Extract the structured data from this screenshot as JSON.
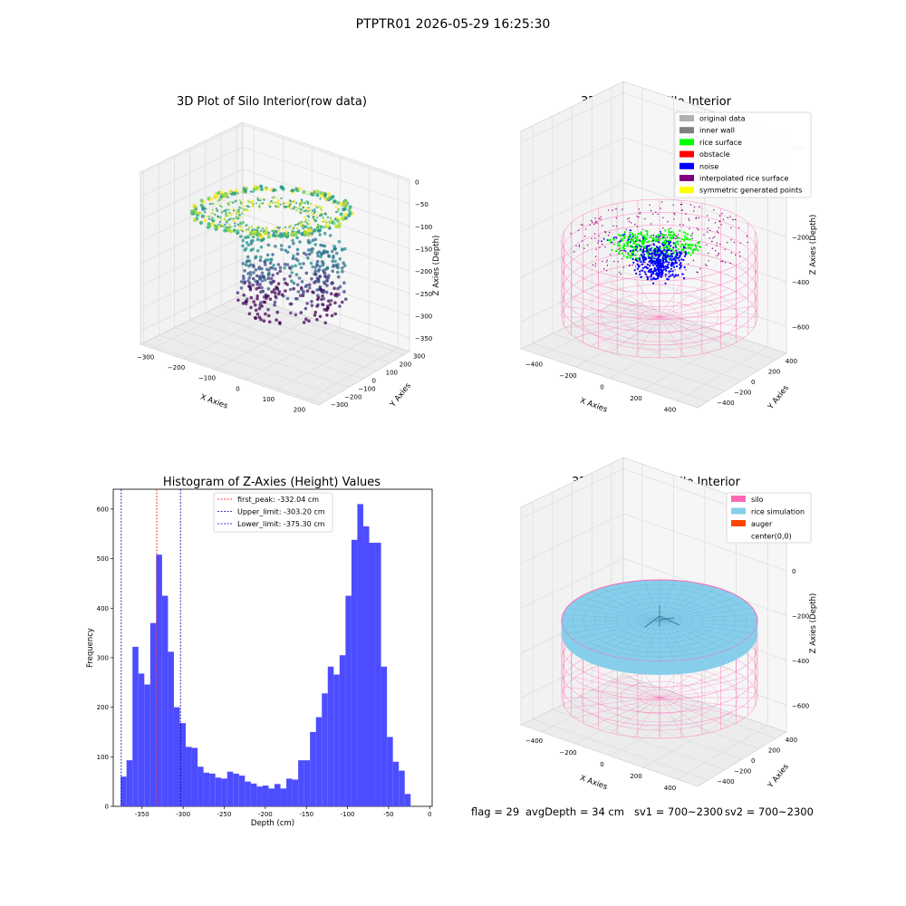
{
  "figure": {
    "suptitle": "PTPTR01 2026-05-29 16:25:30",
    "footer": {
      "flag": "flag = 29",
      "avg_depth": "avgDepth = 34 cm",
      "sv1": "sv1 = 700~2300",
      "sv2": "sv2 = 700~2300"
    }
  },
  "chart_data": [
    {
      "id": "raw",
      "type": "scatter3d",
      "title": "3D Plot of Silo Interior(row data)",
      "xlabel": "X Axies",
      "ylabel": "Y Axies",
      "zlabel": "Z Axies (Depth)",
      "x_ticks": [
        "−300",
        "−200",
        "−100",
        "0",
        "100",
        "200"
      ],
      "y_ticks": [
        "−300",
        "−200",
        "−100",
        "0",
        "100",
        "200",
        "300"
      ],
      "z_ticks": [
        "0",
        "−50",
        "−100",
        "−150",
        "−200",
        "−250",
        "−300",
        "−350"
      ],
      "xlim": [
        -340,
        240
      ],
      "ylim": [
        -320,
        340
      ],
      "zlim": [
        -380,
        5
      ],
      "colormap": "viridis",
      "colors": {
        "low": "#440154",
        "mid": "#21918c",
        "high": "#fde725"
      }
    },
    {
      "id": "classify",
      "type": "scatter3d",
      "title": "3D classify of Silo Interior",
      "xlabel": "X Axies",
      "ylabel": "Y Axies",
      "zlabel": "Z Axies (Depth)",
      "x_ticks": [
        "−400",
        "−200",
        "0",
        "200",
        "400"
      ],
      "y_ticks": [
        "−400",
        "−200",
        "0",
        "200",
        "400"
      ],
      "z_ticks": [
        "200",
        "0",
        "−200",
        "−400",
        "−600"
      ],
      "xlim": [
        -520,
        520
      ],
      "ylim": [
        -520,
        520
      ],
      "zlim": [
        -720,
        250
      ],
      "legend_position": "top-right",
      "legend": [
        {
          "label": "original data",
          "color": "#b0b0b0"
        },
        {
          "label": "inner wall",
          "color": "#808080"
        },
        {
          "label": "rice surface",
          "color": "#00ff00"
        },
        {
          "label": "obstacle",
          "color": "#ff0000"
        },
        {
          "label": "noise",
          "color": "#0000ff"
        },
        {
          "label": "interpolated rice surface",
          "color": "#800080"
        },
        {
          "label": "symmetric generated points",
          "color": "#ffff00"
        }
      ],
      "wire_color": "#ff69b4"
    },
    {
      "id": "histogram",
      "type": "bar",
      "title": "Histogram of Z-Axies (Height) Values",
      "xlabel": "Depth (cm)",
      "ylabel": "Frequency",
      "bar_color": "#4d4dff",
      "xlim": [
        -385,
        3
      ],
      "ylim": [
        0,
        640
      ],
      "x_ticks": [
        -350,
        -300,
        -250,
        -200,
        -150,
        -100,
        -50,
        0
      ],
      "y_ticks": [
        0,
        100,
        200,
        300,
        400,
        500,
        600
      ],
      "bin_start": -376,
      "bin_width": 7.2,
      "values": [
        60,
        93,
        322,
        268,
        246,
        370,
        508,
        425,
        312,
        200,
        168,
        120,
        118,
        80,
        68,
        66,
        58,
        56,
        70,
        66,
        62,
        50,
        46,
        40,
        42,
        36,
        45,
        36,
        56,
        54,
        93,
        93,
        150,
        180,
        228,
        282,
        266,
        305,
        425,
        538,
        610,
        565,
        532,
        532,
        282,
        140,
        90,
        72,
        25
      ],
      "lines": [
        {
          "label": "first_peak: -332.04 cm",
          "x": -332.04,
          "color": "#ff0000"
        },
        {
          "label": "Upper_limit: -303.20 cm",
          "x": -303.2,
          "color": "#00008b"
        },
        {
          "label": "Lower_limit: -375.30 cm",
          "x": -375.3,
          "color": "#0000cd"
        }
      ],
      "legend_position": "top-center"
    },
    {
      "id": "simulation",
      "type": "surface3d",
      "title": "3D simulation of Silo Interior",
      "xlabel": "X Axies",
      "ylabel": "Y Axies",
      "zlabel": "Z Axies (Depth)",
      "x_ticks": [
        "−400",
        "−200",
        "0",
        "200",
        "400"
      ],
      "y_ticks": [
        "−400",
        "−200",
        "0",
        "200",
        "400"
      ],
      "z_ticks": [
        "200",
        "0",
        "−200",
        "−400",
        "−600"
      ],
      "xlim": [
        -520,
        520
      ],
      "ylim": [
        -520,
        520
      ],
      "zlim": [
        -720,
        250
      ],
      "legend_position": "top-right",
      "legend": [
        {
          "label": "silo",
          "color": "#ff69b4"
        },
        {
          "label": "rice simulation",
          "color": "#87ceeb"
        },
        {
          "label": "auger",
          "color": "#ff4500"
        },
        {
          "label": "center(0,0)",
          "color": ""
        }
      ]
    }
  ]
}
